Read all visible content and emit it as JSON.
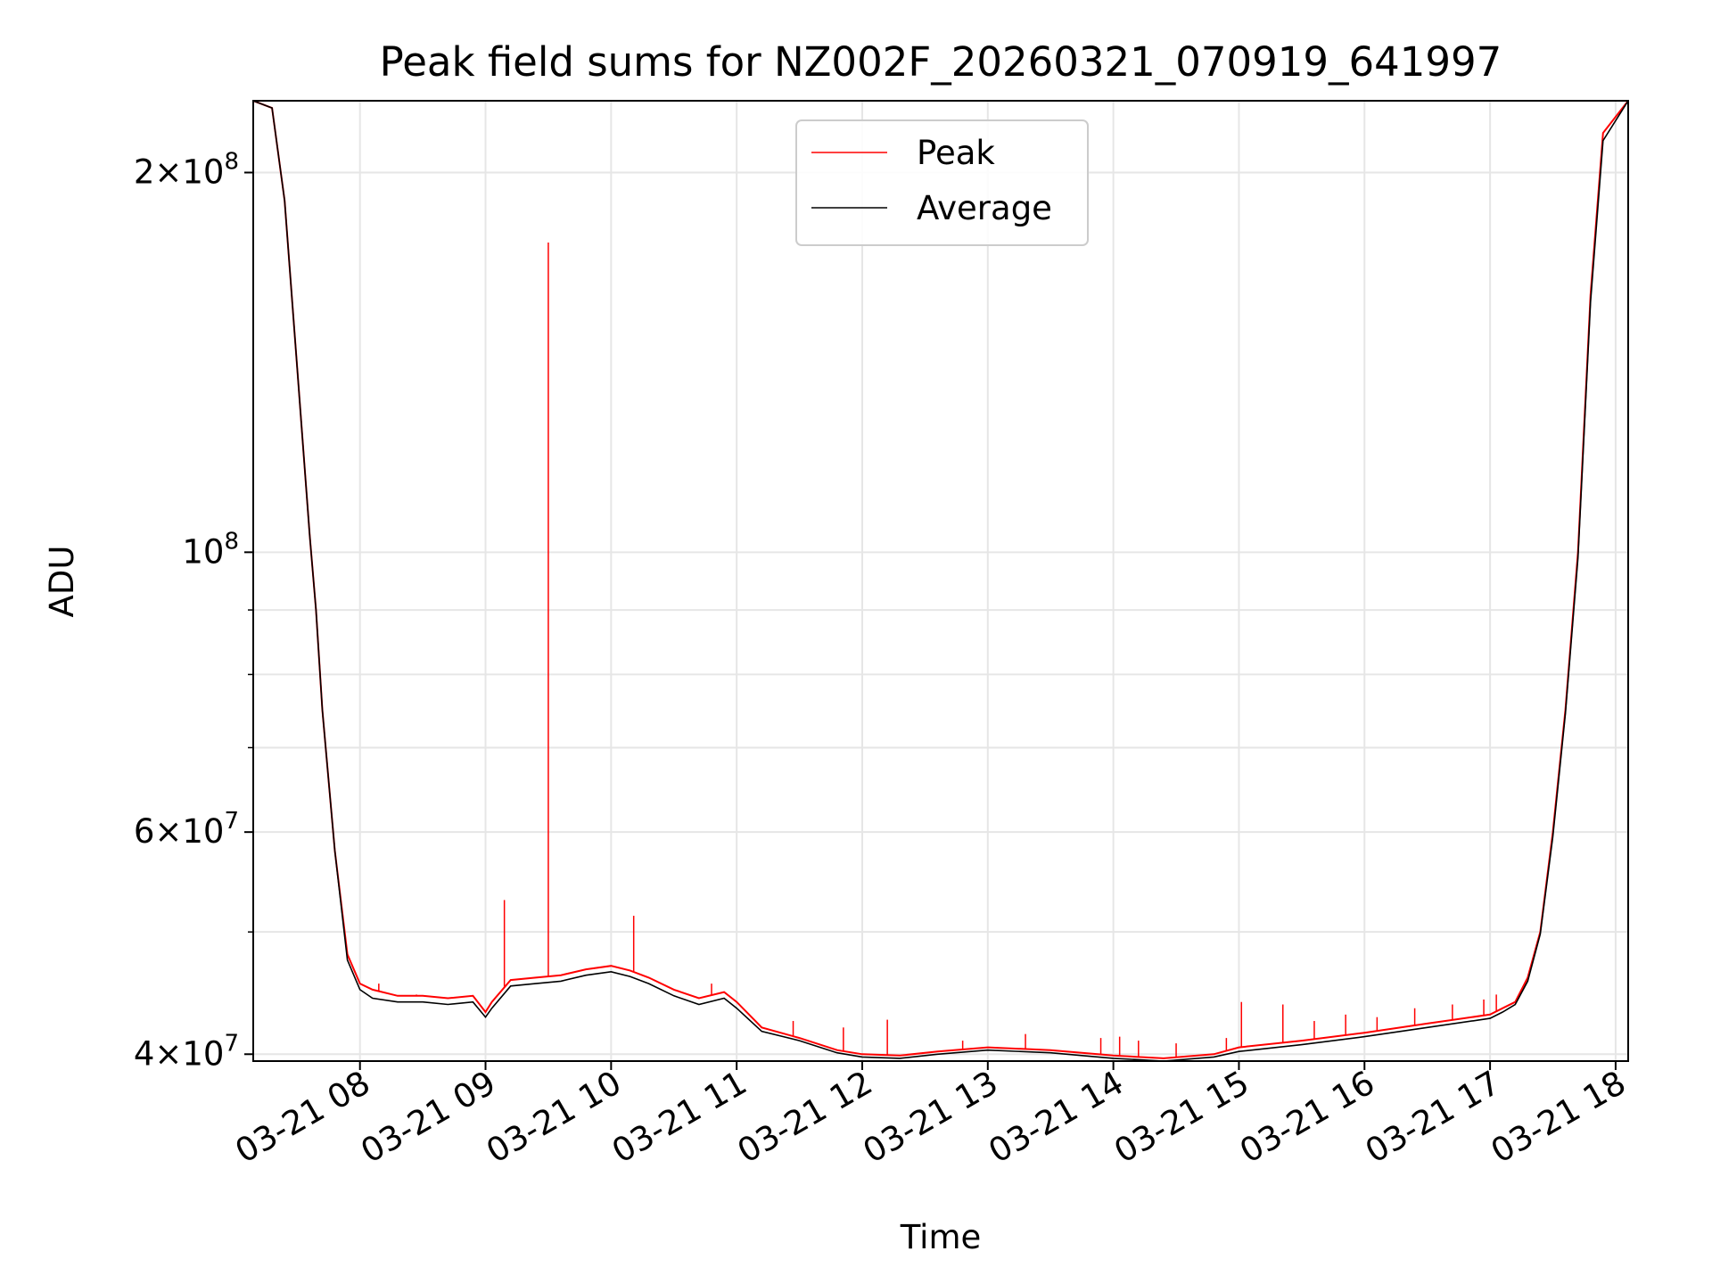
{
  "chart_data": {
    "type": "line",
    "title": "Peak field sums for NZ002F_20260321_070919_641997",
    "xlabel": "Time",
    "ylabel": "ADU",
    "yscale": "log",
    "ylim": [
      39500000,
      228000000
    ],
    "xlim_hours": [
      7.15,
      18.1
    ],
    "grid": true,
    "legend_position": "top-center",
    "x_ticks": [
      {
        "value": 8,
        "label": "03-21 08"
      },
      {
        "value": 9,
        "label": "03-21 09"
      },
      {
        "value": 10,
        "label": "03-21 10"
      },
      {
        "value": 11,
        "label": "03-21 11"
      },
      {
        "value": 12,
        "label": "03-21 12"
      },
      {
        "value": 13,
        "label": "03-21 13"
      },
      {
        "value": 14,
        "label": "03-21 14"
      },
      {
        "value": 15,
        "label": "03-21 15"
      },
      {
        "value": 16,
        "label": "03-21 16"
      },
      {
        "value": 17,
        "label": "03-21 17"
      },
      {
        "value": 18,
        "label": "03-21 18"
      }
    ],
    "y_ticks": [
      {
        "value": 40000000,
        "mant": "4",
        "exp": "7"
      },
      {
        "value": 60000000,
        "mant": "6",
        "exp": "7"
      },
      {
        "value": 100000000,
        "mant": "",
        "exp": "8"
      },
      {
        "value": 200000000,
        "mant": "2",
        "exp": "8"
      }
    ],
    "y_minor_ticks": [
      50000000,
      70000000,
      80000000,
      90000000
    ],
    "series": [
      {
        "name": "Peak",
        "color": "#ff0000",
        "x": [
          7.15,
          7.3,
          7.4,
          7.5,
          7.6,
          7.65,
          7.7,
          7.8,
          7.9,
          8.0,
          8.1,
          8.3,
          8.5,
          8.7,
          8.9,
          9.0,
          9.05,
          9.2,
          9.4,
          9.6,
          9.8,
          10.0,
          10.15,
          10.3,
          10.5,
          10.7,
          10.9,
          11.0,
          11.2,
          11.5,
          11.8,
          12.0,
          12.3,
          12.6,
          13.0,
          13.5,
          14.0,
          14.4,
          14.8,
          15.0,
          15.5,
          16.0,
          16.5,
          17.0,
          17.1,
          17.2,
          17.3,
          17.4,
          17.5,
          17.6,
          17.7,
          17.8,
          17.9,
          18.1
        ],
        "values": [
          228000000,
          225000000,
          190000000,
          140000000,
          103000000,
          90000000,
          75000000,
          58000000,
          48000000,
          45500000,
          45000000,
          44500000,
          44500000,
          44300000,
          44500000,
          43200000,
          44000000,
          45800000,
          46000000,
          46200000,
          46700000,
          47000000,
          46600000,
          46000000,
          45000000,
          44300000,
          44800000,
          44000000,
          42000000,
          41200000,
          40300000,
          40000000,
          39900000,
          40200000,
          40500000,
          40300000,
          39900000,
          39700000,
          40000000,
          40500000,
          41000000,
          41600000,
          42300000,
          43000000,
          43500000,
          44000000,
          46000000,
          50000000,
          60000000,
          75000000,
          100000000,
          160000000,
          215000000,
          228000000
        ],
        "spikes": [
          {
            "x": 8.15,
            "v": 45500000
          },
          {
            "x": 8.45,
            "v": 44600000
          },
          {
            "x": 9.15,
            "v": 53000000
          },
          {
            "x": 9.5,
            "v": 176000000
          },
          {
            "x": 10.18,
            "v": 51500000
          },
          {
            "x": 10.8,
            "v": 45500000
          },
          {
            "x": 11.45,
            "v": 42500000
          },
          {
            "x": 11.85,
            "v": 42000000
          },
          {
            "x": 12.2,
            "v": 42600000
          },
          {
            "x": 12.8,
            "v": 41000000
          },
          {
            "x": 13.3,
            "v": 41500000
          },
          {
            "x": 13.9,
            "v": 41200000
          },
          {
            "x": 14.05,
            "v": 41300000
          },
          {
            "x": 14.2,
            "v": 41000000
          },
          {
            "x": 14.5,
            "v": 40800000
          },
          {
            "x": 14.9,
            "v": 41200000
          },
          {
            "x": 15.02,
            "v": 44000000
          },
          {
            "x": 15.35,
            "v": 43800000
          },
          {
            "x": 15.6,
            "v": 42500000
          },
          {
            "x": 15.85,
            "v": 43000000
          },
          {
            "x": 16.1,
            "v": 42800000
          },
          {
            "x": 16.4,
            "v": 43500000
          },
          {
            "x": 16.7,
            "v": 43800000
          },
          {
            "x": 16.95,
            "v": 44200000
          },
          {
            "x": 17.05,
            "v": 44600000
          }
        ]
      },
      {
        "name": "Average",
        "color": "#000000",
        "x": [
          7.15,
          7.3,
          7.4,
          7.5,
          7.6,
          7.65,
          7.7,
          7.8,
          7.9,
          8.0,
          8.1,
          8.3,
          8.5,
          8.7,
          8.9,
          9.0,
          9.05,
          9.2,
          9.4,
          9.6,
          9.8,
          10.0,
          10.15,
          10.3,
          10.5,
          10.7,
          10.9,
          11.0,
          11.2,
          11.5,
          11.8,
          12.0,
          12.3,
          12.6,
          13.0,
          13.5,
          14.0,
          14.4,
          14.8,
          15.0,
          15.5,
          16.0,
          16.5,
          17.0,
          17.1,
          17.2,
          17.3,
          17.4,
          17.5,
          17.6,
          17.7,
          17.8,
          17.9,
          18.1
        ],
        "values": [
          228000000,
          225000000,
          190000000,
          140000000,
          103000000,
          90000000,
          75000000,
          58000000,
          47500000,
          45000000,
          44300000,
          44000000,
          44000000,
          43800000,
          44000000,
          42800000,
          43500000,
          45300000,
          45500000,
          45700000,
          46200000,
          46500000,
          46100000,
          45500000,
          44500000,
          43800000,
          44300000,
          43500000,
          41700000,
          41000000,
          40100000,
          39800000,
          39700000,
          40000000,
          40300000,
          40100000,
          39700000,
          39500000,
          39800000,
          40200000,
          40700000,
          41300000,
          42000000,
          42700000,
          43200000,
          43800000,
          45700000,
          49800000,
          59500000,
          74500000,
          99000000,
          158000000,
          212000000,
          228000000
        ]
      }
    ]
  }
}
